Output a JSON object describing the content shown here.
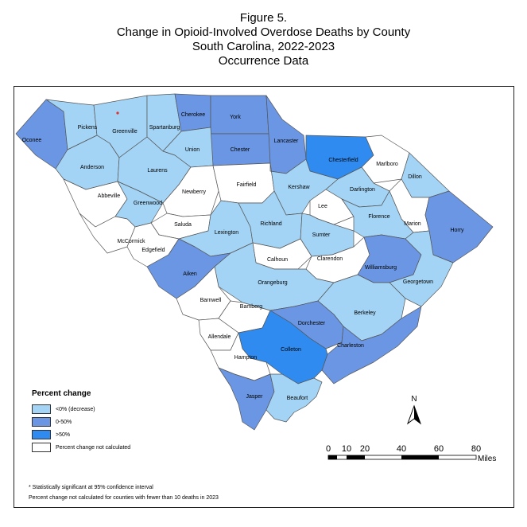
{
  "title": {
    "line1": "Figure 5.",
    "line2": "Change in Opioid-Involved Overdose Deaths by County",
    "line3": "South Carolina, 2022-2023",
    "line4": "Occurrence Data"
  },
  "colors": {
    "decrease": "#A4D4F5",
    "increase_0_50": "#6A96E3",
    "increase_over_50": "#2F8BF0",
    "not_calculated": "#FFFFFF",
    "border": "#555555",
    "significance_marker": "#E0302A"
  },
  "legend": {
    "title": "Percent change",
    "items": [
      {
        "label": "<0% (decrease)",
        "category": "decrease"
      },
      {
        "label": "0-50%",
        "category": "increase_0_50"
      },
      {
        "label": ">50%",
        "category": "increase_over_50"
      },
      {
        "label": "Percent change not calculated",
        "category": "not_calculated"
      }
    ]
  },
  "counties": [
    {
      "name": "Oconee",
      "category": "increase_0_50"
    },
    {
      "name": "Pickens",
      "category": "decrease"
    },
    {
      "name": "Greenville",
      "category": "decrease",
      "significant": true
    },
    {
      "name": "Spartanburg",
      "category": "decrease"
    },
    {
      "name": "Cherokee",
      "category": "increase_0_50"
    },
    {
      "name": "York",
      "category": "increase_0_50"
    },
    {
      "name": "Lancaster",
      "category": "increase_0_50"
    },
    {
      "name": "Chester",
      "category": "increase_0_50"
    },
    {
      "name": "Union",
      "category": "decrease"
    },
    {
      "name": "Anderson",
      "category": "decrease"
    },
    {
      "name": "Laurens",
      "category": "decrease"
    },
    {
      "name": "Abbeville",
      "category": "not_calculated"
    },
    {
      "name": "Greenwood",
      "category": "decrease"
    },
    {
      "name": "Newberry",
      "category": "not_calculated"
    },
    {
      "name": "Fairfield",
      "category": "not_calculated"
    },
    {
      "name": "Chesterfield",
      "category": "increase_over_50"
    },
    {
      "name": "Marlboro",
      "category": "not_calculated"
    },
    {
      "name": "Dillon",
      "category": "decrease"
    },
    {
      "name": "Kershaw",
      "category": "decrease"
    },
    {
      "name": "Darlington",
      "category": "decrease"
    },
    {
      "name": "Lee",
      "category": "not_calculated"
    },
    {
      "name": "Marion",
      "category": "not_calculated"
    },
    {
      "name": "Horry",
      "category": "increase_0_50"
    },
    {
      "name": "Florence",
      "category": "decrease"
    },
    {
      "name": "McCormick",
      "category": "not_calculated"
    },
    {
      "name": "Saluda",
      "category": "not_calculated"
    },
    {
      "name": "Edgefield",
      "category": "not_calculated"
    },
    {
      "name": "Lexington",
      "category": "decrease"
    },
    {
      "name": "Richland",
      "category": "decrease"
    },
    {
      "name": "Sumter",
      "category": "decrease"
    },
    {
      "name": "Calhoun",
      "category": "not_calculated"
    },
    {
      "name": "Clarendon",
      "category": "not_calculated"
    },
    {
      "name": "Williamsburg",
      "category": "increase_0_50"
    },
    {
      "name": "Georgetown",
      "category": "decrease"
    },
    {
      "name": "Aiken",
      "category": "increase_0_50"
    },
    {
      "name": "Orangeburg",
      "category": "decrease"
    },
    {
      "name": "Barnwell",
      "category": "not_calculated"
    },
    {
      "name": "Bamberg",
      "category": "not_calculated"
    },
    {
      "name": "Berkeley",
      "category": "decrease"
    },
    {
      "name": "Dorchester",
      "category": "increase_0_50"
    },
    {
      "name": "Charleston",
      "category": "increase_0_50"
    },
    {
      "name": "Allendale",
      "category": "not_calculated"
    },
    {
      "name": "Colleton",
      "category": "increase_over_50"
    },
    {
      "name": "Hampton",
      "category": "not_calculated"
    },
    {
      "name": "Jasper",
      "category": "increase_0_50"
    },
    {
      "name": "Beaufort",
      "category": "decrease"
    }
  ],
  "north_arrow": {
    "label": "N"
  },
  "scale_bar": {
    "ticks": [
      "0",
      "10",
      "20",
      "40",
      "60",
      "80"
    ],
    "unit": "Miles"
  },
  "notes": {
    "significance": "* Statistically significant at 95% confidence interval",
    "not_calculated": "Percent change not calculated for counties with fewer than 10 deaths in 2023"
  }
}
